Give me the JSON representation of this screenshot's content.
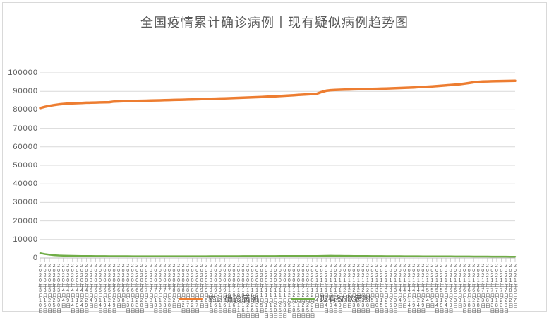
{
  "colors": {
    "confirmed_line": "#ED7D31",
    "suspected_line": "#70AD47",
    "gridline": "#D9D9D9",
    "axis": "#BFBFBF",
    "text": "#595959",
    "frame_border": "#D9D9D9"
  },
  "chart_data": {
    "type": "line",
    "title": "全国疫情累计确诊病例丨现有疑似病例趋势图",
    "xlabel": "",
    "ylabel": "",
    "ylim": [
      0,
      100000
    ],
    "ytick_interval": 10000,
    "grid": true,
    "legend_position": "bottom",
    "categories": [
      "2020年3月10日",
      "2020年3月15日",
      "2020年3月20日",
      "2020年3月25日",
      "2020年3月30日",
      "2020年4月4日",
      "2020年4月9日",
      "2020年4月14日",
      "2020年4月19日",
      "2020年4月24日",
      "2020年4月29日",
      "2020年5月4日",
      "2020年5月9日",
      "2020年5月14日",
      "2020年5月19日",
      "2020年5月24日",
      "2020年5月29日",
      "2020年6月3日",
      "2020年6月8日",
      "2020年6月13日",
      "2020年6月18日",
      "2020年6月23日",
      "2020年6月28日",
      "2020年7月3日",
      "2020年7月8日",
      "2020年7月13日",
      "2020年7月18日",
      "2020年7月23日",
      "2020年7月28日",
      "2020年8月2日",
      "2020年8月7日",
      "2020年8月12日",
      "2020年8月17日",
      "2020年8月22日",
      "2020年8月27日",
      "2020年9月1日",
      "2020年9月6日",
      "2020年9月11日",
      "2020年9月16日",
      "2020年9月21日",
      "2020年9月26日",
      "2020年10月1日",
      "2020年10月6日",
      "2020年10月11日",
      "2020年10月16日",
      "2020年10月21日",
      "2020年10月26日",
      "2020年10月31日",
      "2020年11月5日",
      "2020年11月10日",
      "2020年11月15日",
      "2020年11月20日",
      "2020年11月25日",
      "2020年11月30日",
      "2020年12月5日",
      "2020年12月10日",
      "2020年12月15日",
      "2020年12月20日",
      "2020年12月25日",
      "2020年12月30日",
      "2021年1月4日",
      "2021年1月9日",
      "2021年1月14日",
      "2021年1月19日",
      "2021年1月24日",
      "2021年1月29日",
      "2021年2月3日",
      "2021年2月8日",
      "2021年2月13日",
      "2021年2月18日",
      "2021年2月23日",
      "2021年2月28日",
      "2021年3月5日",
      "2021年3月10日",
      "2021年3月15日",
      "2021年3月20日",
      "2021年3月25日",
      "2021年3月30日",
      "2021年4月4日",
      "2021年4月9日",
      "2021年4月14日",
      "2021年4月19日",
      "2021年4月24日",
      "2021年4月29日",
      "2021年5月4日",
      "2021年5月9日",
      "2021年5月14日",
      "2021年5月19日",
      "2021年5月24日",
      "2021年5月29日",
      "2021年6月3日",
      "2021年6月8日",
      "2021年6月13日",
      "2021年6月18日",
      "2021年6月23日",
      "2021年6月28日",
      "2021年7月3日",
      "2021年7月8日",
      "2021年7月13日",
      "2021年7月18日",
      "2021年7月23日",
      "2021年7月28日",
      "2021年8月2日",
      "2021年8月7日"
    ],
    "series": [
      {
        "name": "累计确诊病例",
        "color": "#ED7D31",
        "width": 3.5,
        "values": [
          80970,
          81600,
          82150,
          82550,
          82900,
          83150,
          83350,
          83500,
          83600,
          83700,
          83800,
          83870,
          83940,
          84000,
          84060,
          84120,
          84450,
          84550,
          84620,
          84700,
          84760,
          84820,
          84880,
          84940,
          85000,
          85060,
          85120,
          85190,
          85260,
          85330,
          85400,
          85470,
          85540,
          85620,
          85700,
          85780,
          85860,
          85940,
          86020,
          86100,
          86180,
          86270,
          86360,
          86450,
          86540,
          86640,
          86740,
          86850,
          86960,
          87080,
          87200,
          87330,
          87460,
          87600,
          87750,
          87900,
          88050,
          88200,
          88350,
          88500,
          88700,
          89600,
          90300,
          90600,
          90750,
          90850,
          90930,
          91000,
          91060,
          91120,
          91180,
          91240,
          91300,
          91370,
          91440,
          91520,
          91600,
          91690,
          91780,
          91880,
          91990,
          92110,
          92240,
          92380,
          92530,
          92690,
          92860,
          93040,
          93230,
          93430,
          93640,
          93870,
          94150,
          94500,
          94900,
          95150,
          95300,
          95400,
          95470,
          95530,
          95570,
          95610,
          95650,
          95700
        ]
      },
      {
        "name": "现有疑似病例",
        "color": "#70AD47",
        "width": 2.5,
        "values": [
          2600,
          2100,
          1750,
          1500,
          1350,
          1250,
          1180,
          1130,
          1090,
          1060,
          1040,
          1020,
          1000,
          990,
          980,
          970,
          960,
          950,
          945,
          940,
          935,
          930,
          925,
          920,
          915,
          910,
          905,
          900,
          900,
          900,
          905,
          910,
          915,
          920,
          925,
          930,
          935,
          940,
          945,
          950,
          955,
          960,
          965,
          970,
          975,
          980,
          985,
          990,
          995,
          1000,
          1005,
          1010,
          1015,
          1020,
          1025,
          1030,
          1035,
          1040,
          1045,
          1050,
          1060,
          1100,
          1150,
          1180,
          1160,
          1140,
          1120,
          1100,
          1080,
          1060,
          1040,
          1020,
          1000,
          990,
          980,
          970,
          960,
          950,
          940,
          930,
          920,
          910,
          900,
          890,
          880,
          870,
          860,
          850,
          840,
          830,
          820,
          810,
          800,
          790,
          780,
          770,
          760,
          750,
          740,
          730,
          720,
          710,
          700,
          700
        ]
      }
    ]
  }
}
